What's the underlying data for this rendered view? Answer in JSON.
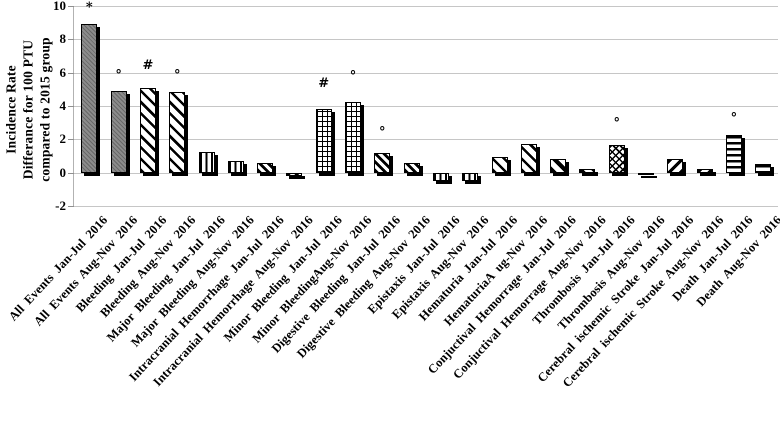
{
  "chart_data": {
    "type": "bar",
    "title": "",
    "ylabel_lines": [
      "Incidence  Rate",
      "Differance  for  100 PTU",
      "compared to 2015 group"
    ],
    "xlabel": "",
    "ylim": [
      -2,
      10
    ],
    "yticks": [
      10,
      8,
      6,
      4,
      2,
      0,
      -2
    ],
    "grid": true,
    "legend_position": "none",
    "colors": {
      "bar_gray": "#8c8c8c",
      "pattern_ink": "#000000",
      "grid_line": "#c6c6c6",
      "axis_line": "#b2b2b2",
      "text": "#000000",
      "background": "#ffffff"
    },
    "bars": [
      {
        "label": "All Events Jan-Jul 2016",
        "value": 8.9,
        "pattern": "solid",
        "marker": "*",
        "marker_y": 9.9
      },
      {
        "label": "All Events Aug-Nov 2016",
        "value": 4.9,
        "pattern": "solid",
        "marker": "°",
        "marker_y": 5.8
      },
      {
        "label": "Bleeding Jan-Jul 2016",
        "value": 5.1,
        "pattern": "diag-wide",
        "marker": "#",
        "marker_y": 6.4
      },
      {
        "label": "Bleeding Aug-Nov 2016",
        "value": 4.85,
        "pattern": "diag-wide",
        "marker": "°",
        "marker_y": 5.8
      },
      {
        "label": "Major Bleeding Jan-Jul 2016",
        "value": 1.25,
        "pattern": "vert",
        "marker": "",
        "marker_y": null
      },
      {
        "label": "Major Bleeding Aug-Nov 2016",
        "value": 0.7,
        "pattern": "vert",
        "marker": "",
        "marker_y": null
      },
      {
        "label": "Intracranial Hemorrhage Jan-Jul 2016",
        "value": 0.6,
        "pattern": "diag-dense",
        "marker": "",
        "marker_y": null
      },
      {
        "label": "Intracranial Hemorrhage Aug-Nov 2016",
        "value": -0.2,
        "pattern": "diag-dense",
        "marker": "",
        "marker_y": null
      },
      {
        "label": "Minor Bleeding Jan-Jul 2016",
        "value": 3.8,
        "pattern": "grid",
        "marker": "#",
        "marker_y": 5.3
      },
      {
        "label": "Minor BleedingAug-Nov 2016",
        "value": 4.25,
        "pattern": "grid",
        "marker": "°",
        "marker_y": 5.75
      },
      {
        "label": "Digestive Bleeding Jan-Jul 2016",
        "value": 1.2,
        "pattern": "diag-dense",
        "marker": "°",
        "marker_y": 2.4
      },
      {
        "label": "Digestive Bleeding Aug-Nov 2016",
        "value": 0.6,
        "pattern": "diag-dense",
        "marker": "",
        "marker_y": null
      },
      {
        "label": "Epistaxis Jan-Jul 2016",
        "value": -0.5,
        "pattern": "vert",
        "marker": "",
        "marker_y": null
      },
      {
        "label": "Epistaxis Aug-Nov 2016",
        "value": -0.5,
        "pattern": "vert",
        "marker": "",
        "marker_y": null
      },
      {
        "label": "Hematuria Jan-Jul 2016",
        "value": 0.95,
        "pattern": "diag-wide",
        "marker": "",
        "marker_y": null
      },
      {
        "label": "HematuriaA ug-Nov 2016",
        "value": 1.7,
        "pattern": "diag-wide",
        "marker": "",
        "marker_y": null
      },
      {
        "label": "Conjuctival Hemorrage Jan-Jul 2016",
        "value": 0.8,
        "pattern": "diag-thick",
        "marker": "",
        "marker_y": null
      },
      {
        "label": "Conjuctival Hemorrage Aug-Nov 2016",
        "value": 0.25,
        "pattern": "diag-thick",
        "marker": "",
        "marker_y": null
      },
      {
        "label": "Thrombosis Jan-Jul 2016",
        "value": 1.65,
        "pattern": "cross",
        "marker": "°",
        "marker_y": 2.9
      },
      {
        "label": "Thrombosis Aug-Nov 2016",
        "value": -0.15,
        "pattern": "cross",
        "marker": "",
        "marker_y": null
      },
      {
        "label": "Cerebral ischemic Stroke Jan-Jul 2016",
        "value": 0.8,
        "pattern": "diag-up",
        "marker": "",
        "marker_y": null
      },
      {
        "label": "Cerebral ischemic Stroke Aug-Nov 2016",
        "value": 0.25,
        "pattern": "diag-up",
        "marker": "",
        "marker_y": null
      },
      {
        "label": "Death Jan-Jul 2016",
        "value": 2.25,
        "pattern": "horiz",
        "marker": "°",
        "marker_y": 3.2
      },
      {
        "label": "Death Aug-Nov 2016",
        "value": 0.5,
        "pattern": "horiz",
        "marker": "",
        "marker_y": null
      }
    ]
  }
}
